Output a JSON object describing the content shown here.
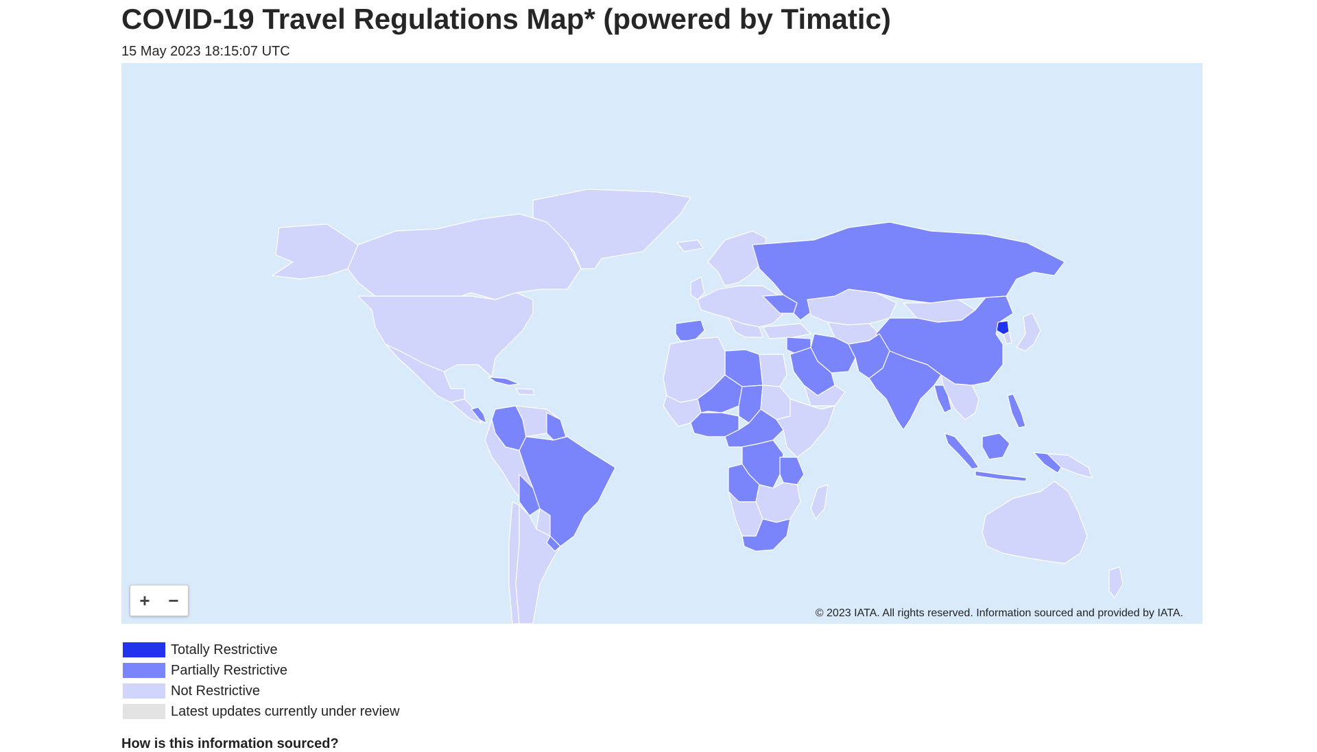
{
  "page": {
    "title": "COVID-19 Travel Regulations Map* (powered by Timatic)",
    "timestamp": "15 May 2023 18:15:07 UTC"
  },
  "map": {
    "copyright": "© 2023 IATA. All rights reserved. Information sourced and provided by IATA.",
    "ocean_color": "#d9eafb",
    "zoom_in_icon": "plus-icon",
    "zoom_out_icon": "minus-icon",
    "zoom_in_label": "+",
    "zoom_out_label": "−"
  },
  "legend": [
    {
      "label": "Totally Restrictive",
      "color": "#2233ee"
    },
    {
      "label": "Partially Restrictive",
      "color": "#7b85fb"
    },
    {
      "label": "Not Restrictive",
      "color": "#d2d5fb"
    },
    {
      "label": "Latest updates currently under review",
      "color": "#e3e3e3"
    }
  ],
  "section_heading": "How is this information sourced?"
}
